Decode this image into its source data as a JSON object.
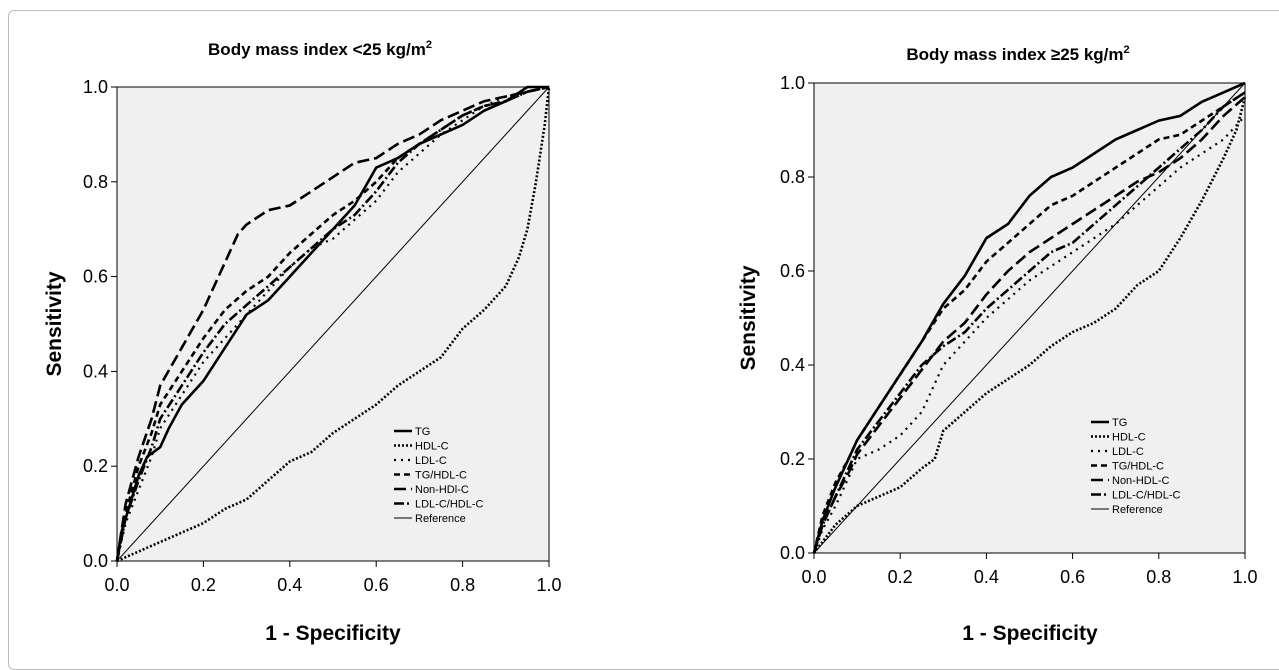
{
  "chart_data": [
    {
      "type": "line",
      "title": "Body mass index <25 kg/m",
      "title_sup": "2",
      "xlabel": "1 - Specificity",
      "ylabel": "Sensitivity",
      "xlim": [
        0,
        1
      ],
      "ylim": [
        0,
        1
      ],
      "xticks": [
        "0.0",
        "0.2",
        "0.4",
        "0.6",
        "0.8",
        "1.0"
      ],
      "yticks": [
        "0.0",
        "0.2",
        "0.4",
        "0.6",
        "0.8",
        "1.0"
      ],
      "grid": false,
      "legend_position": "bottom-right",
      "series": [
        {
          "name": "TG",
          "style": "solid-thick",
          "x": [
            0,
            0.01,
            0.03,
            0.05,
            0.07,
            0.1,
            0.12,
            0.15,
            0.2,
            0.25,
            0.3,
            0.35,
            0.4,
            0.45,
            0.5,
            0.55,
            0.6,
            0.65,
            0.7,
            0.75,
            0.8,
            0.85,
            0.9,
            0.95,
            1.0
          ],
          "y": [
            0,
            0.06,
            0.12,
            0.18,
            0.22,
            0.24,
            0.28,
            0.33,
            0.38,
            0.45,
            0.52,
            0.55,
            0.6,
            0.65,
            0.7,
            0.75,
            0.83,
            0.85,
            0.88,
            0.9,
            0.92,
            0.95,
            0.97,
            1.0,
            1.0
          ]
        },
        {
          "name": "HDL-C",
          "style": "dotted-thick",
          "x": [
            0,
            0.05,
            0.1,
            0.15,
            0.2,
            0.25,
            0.3,
            0.35,
            0.4,
            0.45,
            0.5,
            0.55,
            0.6,
            0.65,
            0.7,
            0.75,
            0.8,
            0.85,
            0.9,
            0.93,
            0.95,
            0.97,
            0.99,
            1.0
          ],
          "y": [
            0,
            0.02,
            0.04,
            0.06,
            0.08,
            0.11,
            0.13,
            0.17,
            0.21,
            0.23,
            0.27,
            0.3,
            0.33,
            0.37,
            0.4,
            0.43,
            0.49,
            0.53,
            0.58,
            0.64,
            0.7,
            0.8,
            0.92,
            1.0
          ]
        },
        {
          "name": "LDL-C",
          "style": "sparse-dot",
          "x": [
            0,
            0.02,
            0.05,
            0.08,
            0.1,
            0.15,
            0.2,
            0.25,
            0.3,
            0.35,
            0.4,
            0.45,
            0.5,
            0.55,
            0.6,
            0.65,
            0.7,
            0.75,
            0.8,
            0.85,
            0.9,
            0.95,
            1.0
          ],
          "y": [
            0,
            0.08,
            0.15,
            0.22,
            0.28,
            0.35,
            0.42,
            0.47,
            0.52,
            0.57,
            0.62,
            0.66,
            0.68,
            0.72,
            0.76,
            0.82,
            0.86,
            0.9,
            0.93,
            0.96,
            0.98,
            0.99,
            1.0
          ]
        },
        {
          "name": "TG/HDL-C",
          "style": "dashed-short",
          "x": [
            0,
            0.02,
            0.05,
            0.08,
            0.1,
            0.15,
            0.2,
            0.25,
            0.3,
            0.35,
            0.4,
            0.45,
            0.5,
            0.55,
            0.6,
            0.65,
            0.7,
            0.75,
            0.8,
            0.85,
            0.9,
            0.95,
            1.0
          ],
          "y": [
            0,
            0.1,
            0.2,
            0.27,
            0.33,
            0.4,
            0.47,
            0.53,
            0.57,
            0.6,
            0.65,
            0.69,
            0.73,
            0.76,
            0.8,
            0.85,
            0.88,
            0.91,
            0.94,
            0.96,
            0.97,
            0.99,
            1.0
          ]
        },
        {
          "name": "Non-HDl-C",
          "style": "dashed-long",
          "x": [
            0,
            0.02,
            0.05,
            0.08,
            0.1,
            0.15,
            0.2,
            0.25,
            0.28,
            0.3,
            0.35,
            0.4,
            0.45,
            0.5,
            0.55,
            0.6,
            0.65,
            0.7,
            0.75,
            0.8,
            0.85,
            0.9,
            0.95,
            1.0
          ],
          "y": [
            0,
            0.12,
            0.22,
            0.3,
            0.37,
            0.45,
            0.53,
            0.63,
            0.69,
            0.71,
            0.74,
            0.75,
            0.78,
            0.81,
            0.84,
            0.85,
            0.88,
            0.9,
            0.93,
            0.95,
            0.97,
            0.98,
            0.99,
            1.0
          ]
        },
        {
          "name": "LDL-C/HDL-C",
          "style": "dash-dot",
          "x": [
            0,
            0.02,
            0.05,
            0.08,
            0.1,
            0.15,
            0.2,
            0.25,
            0.3,
            0.35,
            0.4,
            0.45,
            0.5,
            0.55,
            0.6,
            0.65,
            0.7,
            0.75,
            0.8,
            0.85,
            0.9,
            0.95,
            1.0
          ],
          "y": [
            0,
            0.09,
            0.17,
            0.24,
            0.3,
            0.37,
            0.44,
            0.5,
            0.54,
            0.58,
            0.62,
            0.66,
            0.7,
            0.73,
            0.78,
            0.84,
            0.88,
            0.91,
            0.94,
            0.96,
            0.97,
            0.99,
            1.0
          ]
        },
        {
          "name": "Reference",
          "style": "reference",
          "x": [
            0,
            1
          ],
          "y": [
            0,
            1
          ]
        }
      ]
    },
    {
      "type": "line",
      "title": "Body mass index ≥25 kg/m",
      "title_sup": "2",
      "xlabel": "1 - Specificity",
      "ylabel": "Sensitivity",
      "xlim": [
        0,
        1
      ],
      "ylim": [
        0,
        1
      ],
      "xticks": [
        "0.0",
        "0.2",
        "0.4",
        "0.6",
        "0.8",
        "1.0"
      ],
      "yticks": [
        "0.0",
        "0.2",
        "0.4",
        "0.6",
        "0.8",
        "1.0"
      ],
      "grid": false,
      "legend_position": "bottom-right",
      "series": [
        {
          "name": "TG",
          "style": "solid-thick",
          "x": [
            0,
            0.02,
            0.05,
            0.08,
            0.1,
            0.15,
            0.2,
            0.25,
            0.3,
            0.35,
            0.4,
            0.45,
            0.5,
            0.55,
            0.6,
            0.65,
            0.7,
            0.75,
            0.8,
            0.85,
            0.9,
            0.95,
            1.0
          ],
          "y": [
            0,
            0.07,
            0.14,
            0.2,
            0.24,
            0.31,
            0.38,
            0.45,
            0.53,
            0.59,
            0.67,
            0.7,
            0.76,
            0.8,
            0.82,
            0.85,
            0.88,
            0.9,
            0.92,
            0.93,
            0.96,
            0.98,
            1.0
          ]
        },
        {
          "name": "HDL-C",
          "style": "dotted-thick",
          "x": [
            0,
            0.05,
            0.1,
            0.15,
            0.2,
            0.25,
            0.28,
            0.3,
            0.35,
            0.4,
            0.45,
            0.5,
            0.55,
            0.6,
            0.65,
            0.7,
            0.75,
            0.8,
            0.85,
            0.9,
            0.95,
            0.98,
            1.0
          ],
          "y": [
            0,
            0.06,
            0.1,
            0.12,
            0.14,
            0.18,
            0.2,
            0.26,
            0.3,
            0.34,
            0.37,
            0.4,
            0.44,
            0.47,
            0.49,
            0.52,
            0.57,
            0.6,
            0.67,
            0.75,
            0.84,
            0.9,
            0.97
          ]
        },
        {
          "name": "LDL-C",
          "style": "sparse-dot",
          "x": [
            0,
            0.02,
            0.05,
            0.08,
            0.1,
            0.15,
            0.2,
            0.25,
            0.3,
            0.35,
            0.4,
            0.45,
            0.5,
            0.55,
            0.6,
            0.65,
            0.7,
            0.75,
            0.8,
            0.85,
            0.9,
            0.95,
            1.0
          ],
          "y": [
            0,
            0.05,
            0.1,
            0.16,
            0.2,
            0.22,
            0.25,
            0.3,
            0.4,
            0.45,
            0.5,
            0.54,
            0.58,
            0.61,
            0.64,
            0.67,
            0.7,
            0.74,
            0.78,
            0.82,
            0.85,
            0.88,
            0.93
          ]
        },
        {
          "name": "TG/HDL-C",
          "style": "dashed-short",
          "x": [
            0,
            0.02,
            0.05,
            0.08,
            0.1,
            0.15,
            0.2,
            0.25,
            0.3,
            0.35,
            0.4,
            0.45,
            0.5,
            0.55,
            0.6,
            0.65,
            0.7,
            0.75,
            0.8,
            0.85,
            0.9,
            0.95,
            1.0
          ],
          "y": [
            0,
            0.08,
            0.15,
            0.2,
            0.24,
            0.31,
            0.38,
            0.45,
            0.52,
            0.56,
            0.62,
            0.66,
            0.7,
            0.74,
            0.76,
            0.79,
            0.82,
            0.85,
            0.88,
            0.89,
            0.92,
            0.95,
            0.98
          ]
        },
        {
          "name": "Non-HDL-C",
          "style": "dashed-long",
          "x": [
            0,
            0.02,
            0.05,
            0.08,
            0.1,
            0.15,
            0.2,
            0.25,
            0.3,
            0.35,
            0.4,
            0.45,
            0.5,
            0.55,
            0.6,
            0.65,
            0.7,
            0.75,
            0.8,
            0.85,
            0.9,
            0.95,
            1.0
          ],
          "y": [
            0,
            0.06,
            0.12,
            0.17,
            0.21,
            0.27,
            0.33,
            0.39,
            0.45,
            0.49,
            0.55,
            0.6,
            0.64,
            0.67,
            0.7,
            0.73,
            0.76,
            0.79,
            0.81,
            0.84,
            0.88,
            0.93,
            0.97
          ]
        },
        {
          "name": "LDL-C/HDL-C",
          "style": "dash-dot",
          "x": [
            0,
            0.02,
            0.05,
            0.08,
            0.1,
            0.15,
            0.2,
            0.25,
            0.3,
            0.35,
            0.4,
            0.45,
            0.5,
            0.55,
            0.6,
            0.65,
            0.7,
            0.75,
            0.8,
            0.85,
            0.9,
            0.95,
            1.0
          ],
          "y": [
            0,
            0.06,
            0.12,
            0.18,
            0.22,
            0.28,
            0.34,
            0.4,
            0.44,
            0.47,
            0.52,
            0.56,
            0.6,
            0.64,
            0.66,
            0.7,
            0.74,
            0.78,
            0.82,
            0.86,
            0.9,
            0.95,
            0.98
          ]
        },
        {
          "name": "Reference",
          "style": "reference",
          "x": [
            0,
            1
          ],
          "y": [
            0,
            1
          ]
        }
      ]
    }
  ]
}
